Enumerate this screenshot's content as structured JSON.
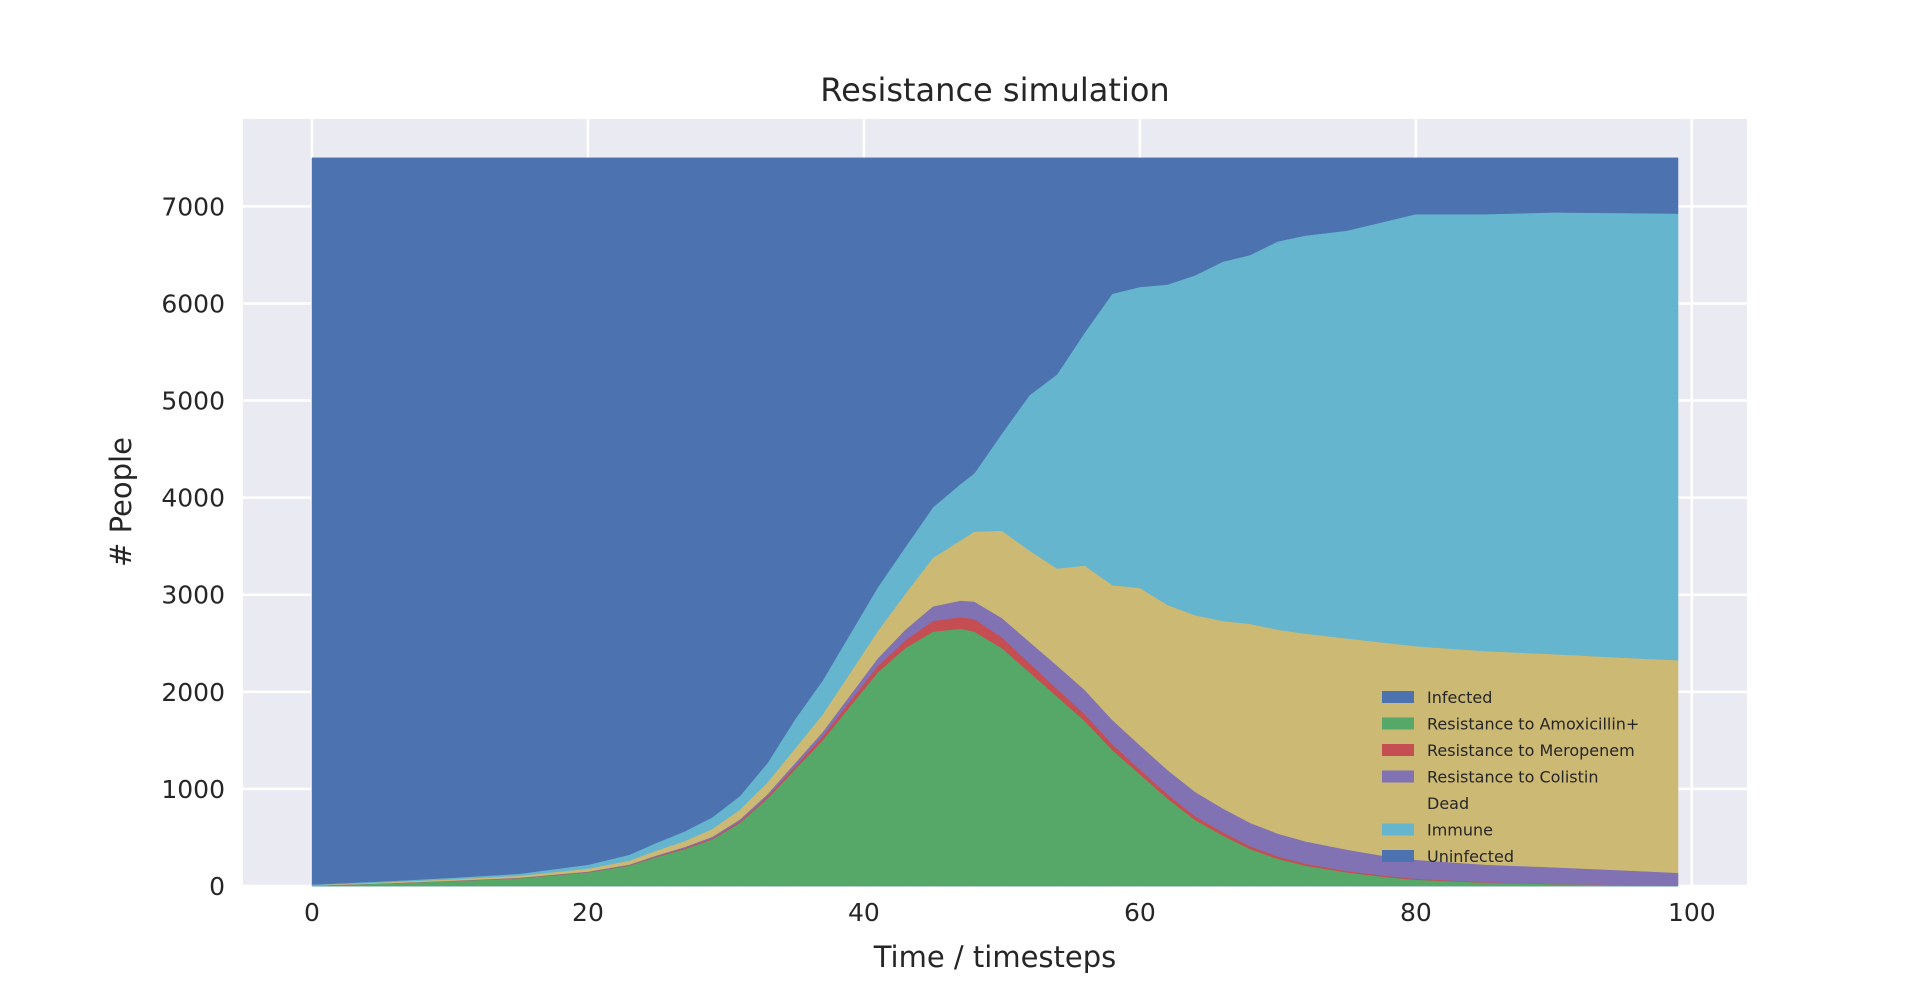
{
  "chart_data": {
    "type": "area",
    "title": "Resistance simulation",
    "xlabel": "Time / timesteps",
    "ylabel": "# People",
    "xlim": [
      -5,
      104
    ],
    "ylim": [
      0,
      7900
    ],
    "xticks": [
      0,
      20,
      40,
      60,
      80,
      100
    ],
    "yticks": [
      0,
      1000,
      2000,
      3000,
      4000,
      5000,
      6000,
      7000
    ],
    "xtick_labels": [
      "0",
      "20",
      "40",
      "60",
      "80",
      "100"
    ],
    "ytick_labels": [
      "0",
      "1000",
      "2000",
      "3000",
      "4000",
      "5000",
      "6000",
      "7000"
    ],
    "grid": true,
    "legend_position": "lower-right",
    "x": [
      0,
      5,
      10,
      15,
      20,
      23,
      25,
      27,
      29,
      31,
      33,
      35,
      37,
      39,
      41,
      43,
      45,
      47,
      48,
      50,
      52,
      54,
      56,
      58,
      60,
      62,
      64,
      66,
      68,
      70,
      72,
      75,
      78,
      80,
      85,
      90,
      95,
      99
    ],
    "series": [
      {
        "name": "Infected",
        "color": "#4c72b0",
        "values": [
          0,
          0,
          0,
          0,
          0,
          0,
          0,
          0,
          0,
          0,
          0,
          0,
          0,
          0,
          0,
          0,
          0,
          0,
          0,
          0,
          0,
          0,
          0,
          0,
          0,
          0,
          0,
          0,
          0,
          0,
          0,
          0,
          0,
          0,
          0,
          0,
          0,
          0
        ]
      },
      {
        "name": "Resistance to Amoxicillin+",
        "color": "#55a868",
        "values": [
          5,
          25,
          50,
          80,
          140,
          210,
          300,
          380,
          480,
          650,
          900,
          1200,
          1500,
          1850,
          2200,
          2450,
          2620,
          2650,
          2620,
          2450,
          2200,
          1950,
          1700,
          1400,
          1150,
          900,
          680,
          520,
          380,
          280,
          210,
          140,
          90,
          65,
          35,
          20,
          10,
          5
        ]
      },
      {
        "name": "Resistance to Meropenem",
        "color": "#c44e52",
        "values": [
          0,
          1,
          2,
          3,
          4,
          5,
          7,
          10,
          12,
          15,
          20,
          30,
          40,
          55,
          65,
          80,
          110,
          120,
          130,
          110,
          95,
          80,
          70,
          60,
          50,
          45,
          40,
          35,
          30,
          25,
          20,
          15,
          12,
          10,
          5,
          3,
          2,
          1
        ]
      },
      {
        "name": "Resistance to Colistin",
        "color": "#8172b3",
        "values": [
          0,
          1,
          2,
          3,
          5,
          7,
          10,
          12,
          15,
          20,
          25,
          35,
          45,
          60,
          80,
          110,
          150,
          170,
          180,
          200,
          220,
          240,
          250,
          250,
          250,
          250,
          250,
          245,
          240,
          235,
          230,
          220,
          200,
          195,
          180,
          170,
          150,
          130
        ]
      },
      {
        "name": "Dead",
        "color": "#ccb974",
        "values": [
          5,
          10,
          15,
          20,
          30,
          40,
          50,
          60,
          80,
          100,
          120,
          150,
          180,
          230,
          280,
          370,
          500,
          620,
          720,
          900,
          940,
          1000,
          1280,
          1390,
          1620,
          1700,
          1820,
          1930,
          2050,
          2100,
          2140,
          2175,
          2200,
          2200,
          2200,
          2195,
          2190,
          2190
        ]
      },
      {
        "name": "Immune",
        "color": "#64b5cd",
        "values": [
          5,
          10,
          15,
          20,
          40,
          60,
          80,
          100,
          120,
          140,
          200,
          300,
          350,
          400,
          450,
          480,
          520,
          580,
          600,
          1000,
          1600,
          2000,
          2400,
          3000,
          3100,
          3300,
          3500,
          3700,
          3800,
          4000,
          4100,
          4200,
          4350,
          4450,
          4500,
          4550,
          4580,
          4600
        ]
      },
      {
        "name": "Uninfected",
        "color": "#4c72b0",
        "values": [
          7485,
          7453,
          7416,
          7374,
          7281,
          7178,
          7053,
          6938,
          6793,
          6575,
          6235,
          5785,
          5385,
          4905,
          4425,
          4010,
          3600,
          3360,
          3250,
          2840,
          2445,
          2230,
          1800,
          1400,
          1330,
          1305,
          1210,
          1070,
          1000,
          860,
          800,
          750,
          648,
          580,
          580,
          562,
          568,
          574
        ]
      }
    ]
  }
}
